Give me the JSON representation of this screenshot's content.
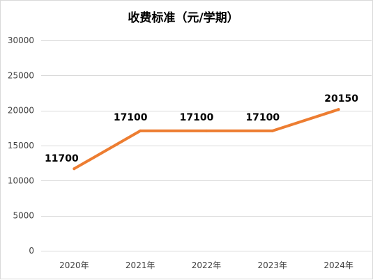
{
  "chart_data": {
    "type": "line",
    "title": "收费标准（元/学期）",
    "xlabel": "",
    "ylabel": "",
    "categories": [
      "2020年",
      "2021年",
      "2022年",
      "2023年",
      "2024年"
    ],
    "series": [
      {
        "values": [
          11700,
          17100,
          17100,
          17100,
          20150
        ],
        "data_labels": [
          "11700",
          "17100",
          "17100",
          "17100",
          "20150"
        ],
        "color": "#ED7D31"
      }
    ],
    "ylim": [
      0,
      30000
    ],
    "yticks": [
      0,
      5000,
      10000,
      15000,
      20000,
      25000,
      30000
    ],
    "ytick_labels": [
      "0",
      "5000",
      "10000",
      "15000",
      "20000",
      "25000",
      "30000"
    ],
    "grid": true,
    "legend": "none",
    "gridline_color": "#d9d9d9"
  }
}
